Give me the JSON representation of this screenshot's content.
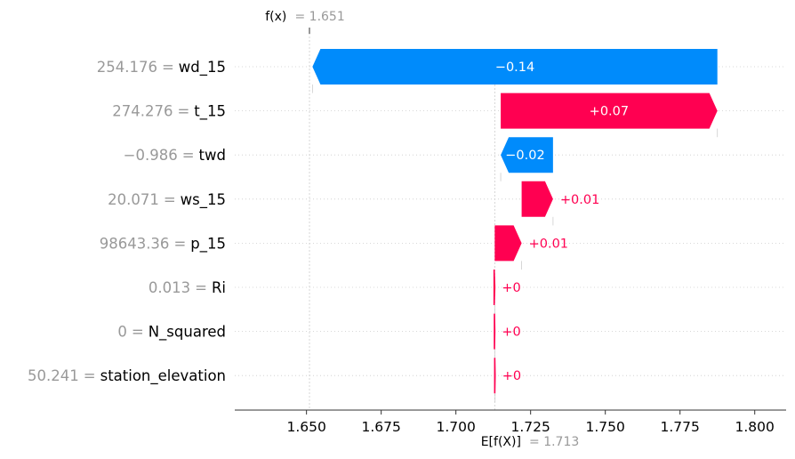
{
  "chart_data": {
    "type": "waterfall",
    "fx_symbol": "f(x)",
    "fx_value": "= 1.651",
    "ex_symbol": "E[f(X)]",
    "ex_value": "= 1.713",
    "fx": 1.651,
    "base_value": 1.713,
    "xlim": [
      1.626,
      1.8105
    ],
    "xticks": [
      1.65,
      1.675,
      1.7,
      1.725,
      1.75,
      1.775,
      1.8
    ],
    "xtick_labels": [
      "1.650",
      "1.675",
      "1.700",
      "1.725",
      "1.750",
      "1.775",
      "1.800"
    ],
    "features": [
      {
        "value_text": "254.176",
        "eq": "=",
        "name": "wd_15",
        "contribution": -0.1355,
        "start": 1.7875,
        "label": "−0.14"
      },
      {
        "value_text": "274.276",
        "eq": "=",
        "name": "t_15",
        "contribution": 0.0725,
        "start": 1.715,
        "label": "+0.07"
      },
      {
        "value_text": "−0.986",
        "eq": "=",
        "name": "twd",
        "contribution": -0.0175,
        "start": 1.7325,
        "label": "−0.02"
      },
      {
        "value_text": "20.071",
        "eq": "=",
        "name": "ws_15",
        "contribution": 0.0105,
        "start": 1.722,
        "label": "+0.01"
      },
      {
        "value_text": "98643.36",
        "eq": "=",
        "name": "p_15",
        "contribution": 0.009,
        "start": 1.713,
        "label": "+0.01"
      },
      {
        "value_text": "0.013",
        "eq": "=",
        "name": "Ri",
        "contribution": 0.0002,
        "start": 1.7128,
        "label": "+0"
      },
      {
        "value_text": "0",
        "eq": "=",
        "name": "N_squared",
        "contribution": 0.0001,
        "start": 1.7129,
        "label": "+0"
      },
      {
        "value_text": "50.241",
        "eq": "=",
        "name": "station_elevation",
        "contribution": 0.0001,
        "start": 1.713,
        "label": "+0"
      }
    ],
    "colors": {
      "positive": "#ff0051",
      "negative": "#008bfb",
      "axis": "#333333",
      "grid": "#cccccc"
    }
  }
}
